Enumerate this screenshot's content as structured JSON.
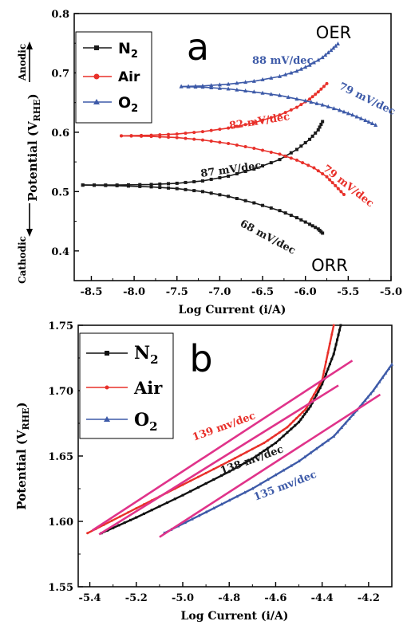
{
  "chart_data": [
    {
      "panel_label": "a",
      "type": "line",
      "xlabel": "Log Current (i/A)",
      "ylabel": "Potential (V",
      "ylabel_sub": "RHE",
      "ylabel_end": ")",
      "xlim": [
        -8.7,
        -5.0
      ],
      "ylim": [
        0.35,
        0.8
      ],
      "xticks": [
        "-8.5",
        "-8.0",
        "-7.5",
        "-7.0",
        "-6.5",
        "-6.0",
        "-5.5",
        "-5.0"
      ],
      "xtick_values": [
        -8.5,
        -8.0,
        -7.5,
        -7.0,
        -6.5,
        -6.0,
        -5.5,
        -5.0
      ],
      "yticks": [
        "0.4",
        "0.5",
        "0.6",
        "0.7",
        "0.8"
      ],
      "ytick_values": [
        0.4,
        0.5,
        0.6,
        0.7,
        0.8
      ],
      "grid": false,
      "legend_position": "top-left",
      "side_labels": {
        "anodic": "Anodic",
        "cathodic": "Cathodic"
      },
      "corner_labels": {
        "oer": "OER",
        "orr": "ORR"
      },
      "series": [
        {
          "name": "N",
          "name_sub": "2",
          "color": "#1a1a1a",
          "marker": "square",
          "branches": [
            {
              "x": [
                -8.6,
                -8.2,
                -7.8,
                -7.5,
                -7.2,
                -6.9,
                -6.6,
                -6.3,
                -6.1,
                -5.95,
                -5.85,
                -5.8
              ],
              "y": [
                0.511,
                0.511,
                0.512,
                0.514,
                0.518,
                0.526,
                0.538,
                0.554,
                0.571,
                0.588,
                0.604,
                0.618
              ]
            },
            {
              "x": [
                -8.6,
                -8.2,
                -7.8,
                -7.5,
                -7.2,
                -6.9,
                -6.6,
                -6.3,
                -6.1,
                -5.95,
                -5.85,
                -5.8
              ],
              "y": [
                0.511,
                0.51,
                0.508,
                0.505,
                0.5,
                0.492,
                0.481,
                0.468,
                0.456,
                0.445,
                0.437,
                0.43
              ]
            }
          ]
        },
        {
          "name": "Air",
          "color": "#e8302a",
          "marker": "circle",
          "branches": [
            {
              "x": [
                -8.15,
                -7.8,
                -7.5,
                -7.2,
                -6.9,
                -6.6,
                -6.3,
                -6.1,
                -5.95,
                -5.85,
                -5.75
              ],
              "y": [
                0.594,
                0.595,
                0.597,
                0.601,
                0.607,
                0.616,
                0.629,
                0.642,
                0.656,
                0.668,
                0.682
              ]
            },
            {
              "x": [
                -8.15,
                -7.8,
                -7.5,
                -7.2,
                -6.9,
                -6.6,
                -6.3,
                -6.1,
                -5.9,
                -5.75,
                -5.65,
                -5.55
              ],
              "y": [
                0.594,
                0.593,
                0.591,
                0.587,
                0.581,
                0.573,
                0.563,
                0.553,
                0.54,
                0.525,
                0.51,
                0.495
              ]
            }
          ]
        },
        {
          "name": "O",
          "name_sub": "2",
          "color": "#3d5aa8",
          "marker": "triangle",
          "branches": [
            {
              "x": [
                -7.45,
                -7.2,
                -6.9,
                -6.6,
                -6.3,
                -6.1,
                -5.95,
                -5.8,
                -5.7,
                -5.62
              ],
              "y": [
                0.677,
                0.678,
                0.681,
                0.686,
                0.694,
                0.703,
                0.713,
                0.726,
                0.738,
                0.749
              ]
            },
            {
              "x": [
                -7.45,
                -7.2,
                -6.9,
                -6.6,
                -6.3,
                -6.0,
                -5.8,
                -5.6,
                -5.45,
                -5.3,
                -5.18
              ],
              "y": [
                0.677,
                0.676,
                0.673,
                0.668,
                0.662,
                0.653,
                0.646,
                0.637,
                0.629,
                0.62,
                0.612
              ]
            }
          ]
        }
      ],
      "annotations": [
        {
          "text": "88 mV/dec",
          "color": "#3d5aa8"
        },
        {
          "text": "79 mV/dec",
          "color": "#3d5aa8"
        },
        {
          "text": "82 mV/dec",
          "color": "#e8302a"
        },
        {
          "text": "87 mV/dec",
          "color": "#1a1a1a"
        },
        {
          "text": "79 mV/dec",
          "color": "#e8302a"
        },
        {
          "text": "68 mV/dec",
          "color": "#1a1a1a"
        }
      ]
    },
    {
      "panel_label": "b",
      "type": "line",
      "xlabel": "Log Current (i/A)",
      "ylabel": "Potential (V",
      "ylabel_sub": "RHE",
      "ylabel_end": ")",
      "xlim": [
        -5.45,
        -4.1
      ],
      "ylim": [
        1.55,
        1.75
      ],
      "xticks": [
        "-5.4",
        "-5.2",
        "-5.0",
        "-4.8",
        "-4.6",
        "-4.4",
        "-4.2"
      ],
      "xtick_values": [
        -5.4,
        -5.2,
        -5.0,
        -4.8,
        -4.6,
        -4.4,
        -4.2
      ],
      "yticks": [
        "1.55",
        "1.60",
        "1.65",
        "1.70",
        "1.75"
      ],
      "ytick_values": [
        1.55,
        1.6,
        1.65,
        1.7,
        1.75
      ],
      "grid": false,
      "legend_position": "top-left",
      "series": [
        {
          "name": "N",
          "name_sub": "2",
          "color": "#111111",
          "marker": "square",
          "x": [
            -5.35,
            -5.2,
            -5.0,
            -4.8,
            -4.7,
            -4.6,
            -4.5,
            -4.45,
            -4.4,
            -4.35,
            -4.32
          ],
          "y": [
            1.591,
            1.603,
            1.62,
            1.638,
            1.648,
            1.66,
            1.676,
            1.688,
            1.705,
            1.728,
            1.75
          ]
        },
        {
          "name": "Air",
          "color": "#e8302a",
          "marker": "circle",
          "x": [
            -5.41,
            -5.2,
            -5.0,
            -4.8,
            -4.65,
            -4.55,
            -4.47,
            -4.4,
            -4.35
          ],
          "y": [
            1.591,
            1.61,
            1.628,
            1.646,
            1.66,
            1.672,
            1.686,
            1.708,
            1.75
          ]
        },
        {
          "name": "O",
          "name_sub": "2",
          "color": "#3d5aa8",
          "marker": "triangle",
          "x": [
            -5.08,
            -4.9,
            -4.7,
            -4.5,
            -4.35,
            -4.25,
            -4.18,
            -4.1
          ],
          "y": [
            1.591,
            1.607,
            1.625,
            1.646,
            1.665,
            1.685,
            1.7,
            1.72
          ]
        }
      ],
      "fit_lines": [
        {
          "x": [
            -5.39,
            -4.27
          ],
          "y": [
            1.593,
            1.723
          ],
          "color": "#e0338a"
        },
        {
          "x": [
            -5.36,
            -4.33
          ],
          "y": [
            1.59,
            1.704
          ],
          "color": "#e0338a"
        },
        {
          "x": [
            -5.1,
            -4.15
          ],
          "y": [
            1.588,
            1.697
          ],
          "color": "#e0338a"
        }
      ],
      "annotations": [
        {
          "text": "139 mv/dec",
          "color": "#e8302a"
        },
        {
          "text": "138 mv/dec",
          "color": "#1a1a1a"
        },
        {
          "text": "135 mv/dec",
          "color": "#3d5aa8"
        }
      ]
    }
  ]
}
